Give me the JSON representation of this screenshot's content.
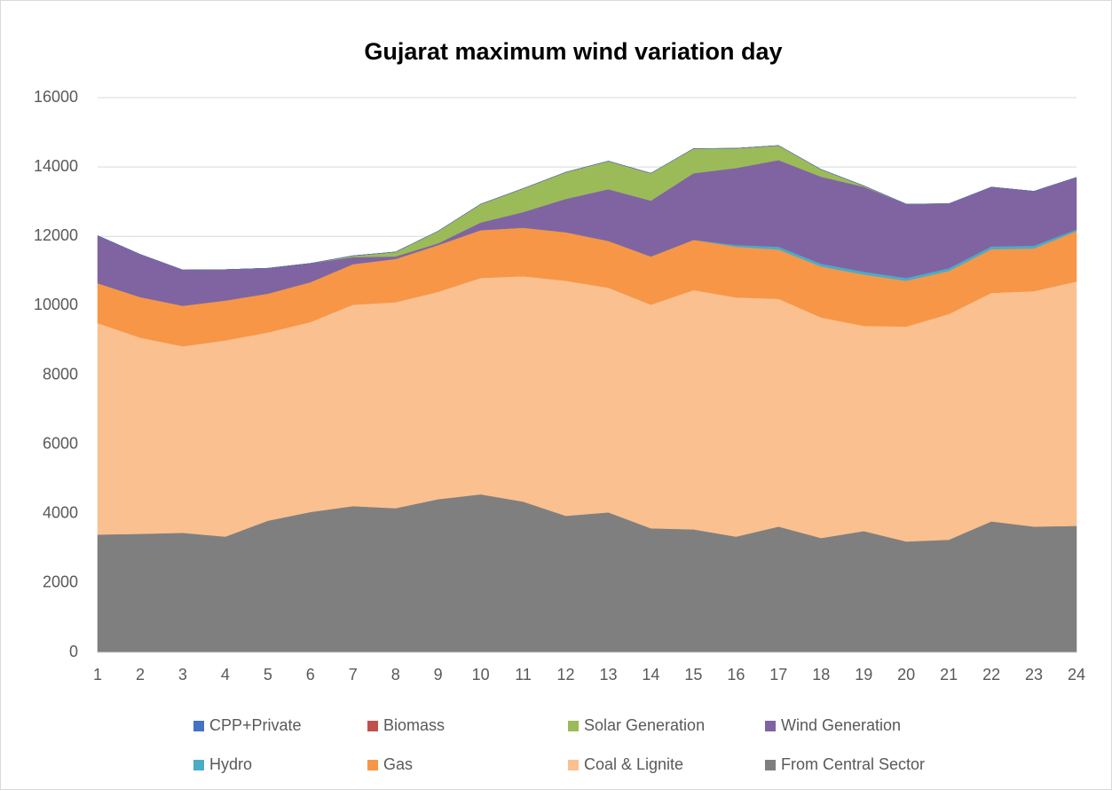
{
  "chart_data": {
    "type": "stacked_area",
    "title": "Gujarat maximum wind variation day",
    "categories": [
      "1",
      "2",
      "3",
      "4",
      "5",
      "6",
      "7",
      "8",
      "9",
      "10",
      "11",
      "12",
      "13",
      "14",
      "15",
      "16",
      "17",
      "18",
      "19",
      "20",
      "21",
      "22",
      "23",
      "24"
    ],
    "series": [
      {
        "name": "CPP+Private",
        "color": "#4472c4",
        "values": [
          0,
          0,
          0,
          0,
          0,
          0,
          0,
          0,
          0,
          0,
          0,
          0,
          0,
          0,
          0,
          0,
          0,
          0,
          0,
          0,
          0,
          0,
          0,
          0
        ]
      },
      {
        "name": "Biomass",
        "color": "#c0504d",
        "values": [
          0,
          0,
          0,
          0,
          0,
          0,
          0,
          0,
          0,
          0,
          0,
          0,
          0,
          0,
          0,
          0,
          0,
          0,
          0,
          0,
          0,
          0,
          0,
          0
        ]
      },
      {
        "name": "Solar Generation",
        "color": "#9bbb59",
        "values": [
          0,
          0,
          0,
          0,
          0,
          0,
          40,
          130,
          350,
          530,
          680,
          770,
          810,
          790,
          710,
          570,
          420,
          210,
          30,
          0,
          0,
          0,
          0,
          0
        ]
      },
      {
        "name": "Wind Generation",
        "color": "#8064a2",
        "values": [
          1370,
          1230,
          1030,
          890,
          730,
          540,
          200,
          70,
          50,
          220,
          450,
          960,
          1490,
          1610,
          1920,
          2220,
          2500,
          2510,
          2450,
          2130,
          1860,
          1710,
          1570,
          1500
        ]
      },
      {
        "name": "Hydro",
        "color": "#4bacc6",
        "values": [
          0,
          0,
          0,
          0,
          0,
          0,
          0,
          0,
          0,
          0,
          0,
          0,
          0,
          0,
          0,
          50,
          80,
          80,
          80,
          80,
          80,
          80,
          80,
          50
        ]
      },
      {
        "name": "Gas",
        "color": "#f79646",
        "values": [
          1150,
          1170,
          1170,
          1150,
          1120,
          1150,
          1170,
          1250,
          1350,
          1380,
          1400,
          1400,
          1350,
          1390,
          1450,
          1460,
          1420,
          1470,
          1480,
          1320,
          1240,
          1260,
          1230,
          1450
        ]
      },
      {
        "name": "Coal & Lignite",
        "color": "#fac090",
        "values": [
          6100,
          5660,
          5380,
          5660,
          5430,
          5480,
          5810,
          5940,
          5980,
          6240,
          6500,
          6780,
          6480,
          6450,
          6900,
          6900,
          6570,
          6360,
          5920,
          6200,
          6510,
          6590,
          6790,
          7050
        ]
      },
      {
        "name": "From Central Sector",
        "color": "#7f7f7f",
        "values": [
          3400,
          3420,
          3450,
          3340,
          3800,
          4050,
          4220,
          4160,
          4420,
          4560,
          4350,
          3940,
          4040,
          3580,
          3550,
          3340,
          3630,
          3300,
          3500,
          3200,
          3250,
          3780,
          3630,
          3650
        ]
      }
    ],
    "ylim": [
      0,
      16000
    ],
    "yticks": [
      0,
      2000,
      4000,
      6000,
      8000,
      10000,
      12000,
      14000,
      16000
    ],
    "grid": true
  }
}
